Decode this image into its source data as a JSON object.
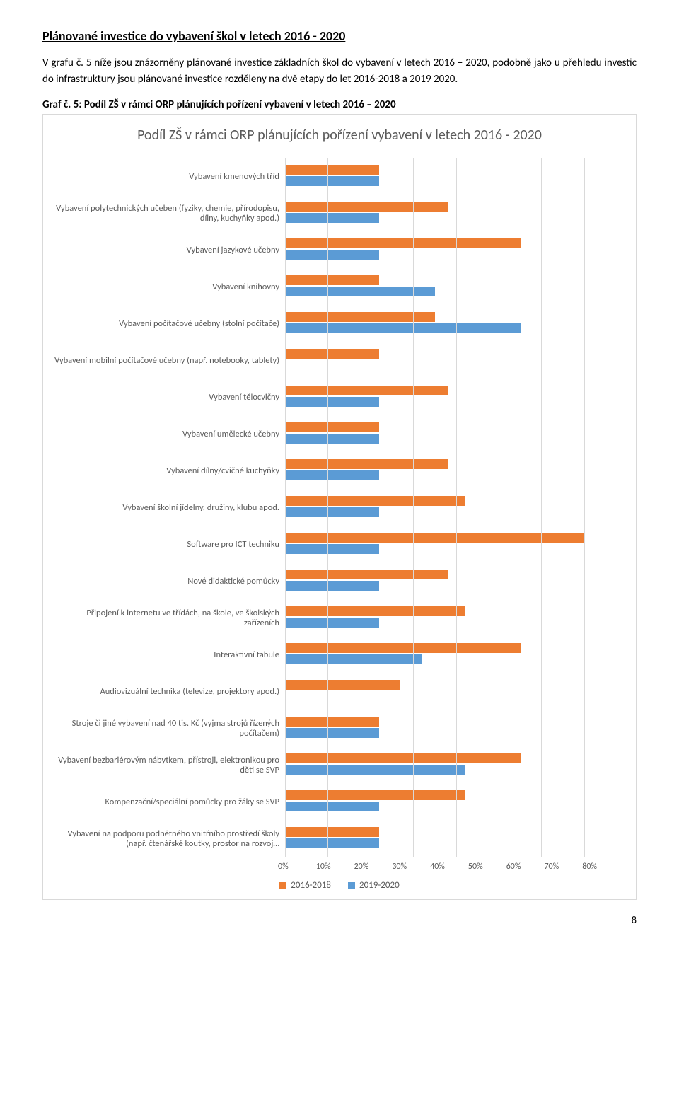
{
  "heading": "Plánované investice do vybavení škol v letech 2016 - 2020",
  "paragraph": "V grafu č. 5 níže jsou znázorněny plánované investice základních škol do vybavení v letech 2016 – 2020, podobně jako u přehledu investic do infrastruktury jsou plánované investice rozděleny na dvě etapy do let 2016-2018 a 2019 2020.",
  "figure_caption": "Graf č. 5: Podíl ZŠ v rámci ORP plánujících pořízení vybavení v letech 2016 – 2020",
  "page_number": "8",
  "chart": {
    "type": "bar-horizontal-grouped",
    "title": "Podíl ZŠ v rámci ORP plánujících pořízení vybavení v letech 2016 - 2020",
    "xmax": 80,
    "xticks": [
      "0%",
      "10%",
      "20%",
      "30%",
      "40%",
      "50%",
      "60%",
      "70%",
      "80%"
    ],
    "series_labels": [
      "2016-2018",
      "2019-2020"
    ],
    "series_colors": [
      "#ed7d31",
      "#5b9bd5"
    ],
    "grid_color": "#d9d9d9",
    "background_color": "#ffffff",
    "text_color": "#5a5a5a",
    "categories": [
      {
        "label": "Vybavení kmenových tříd",
        "values": [
          22,
          22
        ]
      },
      {
        "label": "Vybavení polytechnických učeben (fyziky, chemie, přírodopisu, dílny, kuchyňky apod.)",
        "values": [
          38,
          22
        ]
      },
      {
        "label": "Vybavení jazykové učebny",
        "values": [
          55,
          22
        ]
      },
      {
        "label": "Vybavení knihovny",
        "values": [
          22,
          35
        ]
      },
      {
        "label": "Vybavení počítačové učebny (stolní počítače)",
        "values": [
          35,
          55
        ]
      },
      {
        "label": "Vybavení mobilní počítačové učebny (např. notebooky, tablety)",
        "values": [
          22,
          0
        ]
      },
      {
        "label": "Vybavení tělocvičny",
        "values": [
          38,
          22
        ]
      },
      {
        "label": "Vybavení umělecké učebny",
        "values": [
          22,
          22
        ]
      },
      {
        "label": "Vybavení dílny/cvičné kuchyňky",
        "values": [
          38,
          22
        ]
      },
      {
        "label": "Vybavení školní jídelny, družiny, klubu apod.",
        "values": [
          42,
          22
        ]
      },
      {
        "label": "Software pro ICT techniku",
        "values": [
          70,
          22
        ]
      },
      {
        "label": "Nové didaktické pomůcky",
        "values": [
          38,
          22
        ]
      },
      {
        "label": "Připojení k internetu ve třídách, na škole, ve školských zařízeních",
        "values": [
          42,
          22
        ]
      },
      {
        "label": "Interaktivní tabule",
        "values": [
          55,
          32
        ]
      },
      {
        "label": "Audiovizuální technika (televize, projektory apod.)",
        "values": [
          27,
          0
        ]
      },
      {
        "label": "Stroje či jiné vybavení nad 40 tis. Kč (vyjma strojů řízených počítačem)",
        "values": [
          22,
          22
        ]
      },
      {
        "label": "Vybavení bezbariérovým nábytkem, přístroji, elektronikou pro děti se SVP",
        "values": [
          55,
          42
        ]
      },
      {
        "label": "Kompenzační/speciální pomůcky pro žáky se SVP",
        "values": [
          42,
          22
        ]
      },
      {
        "label": "Vybavení na podporu podnětného vnitřního prostředí školy (např. čtenářské koutky, prostor na rozvoj…",
        "values": [
          22,
          22
        ]
      }
    ]
  }
}
